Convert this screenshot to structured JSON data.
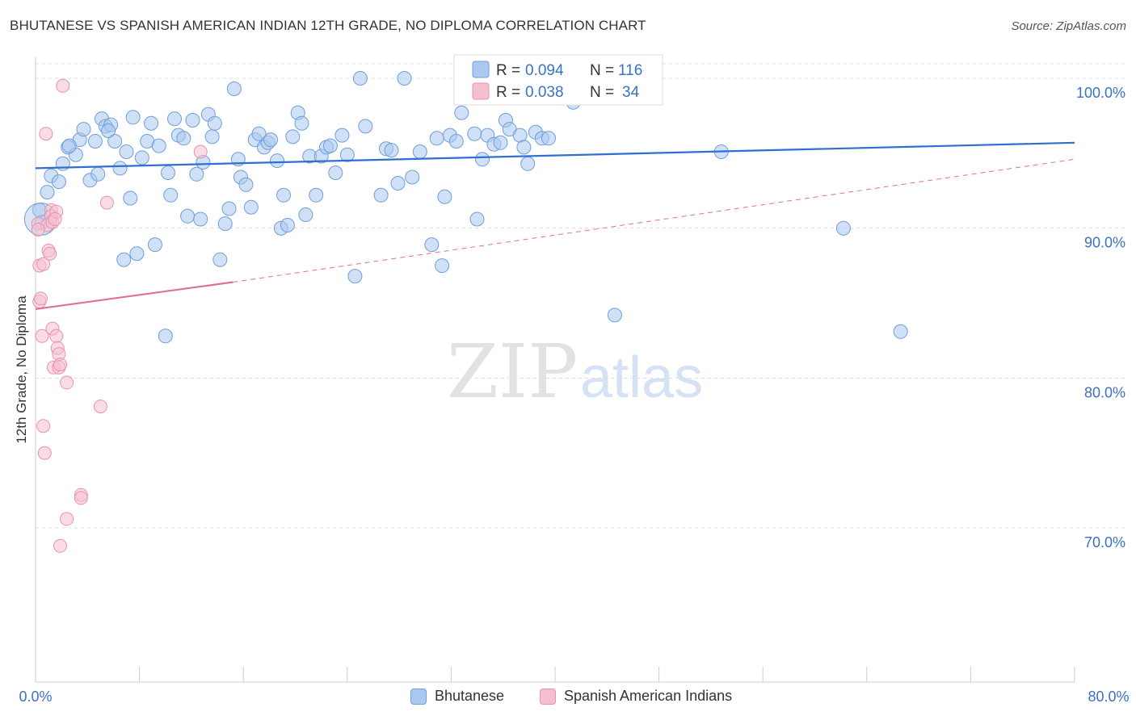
{
  "header": {
    "title": "BHUTANESE VS SPANISH AMERICAN INDIAN 12TH GRADE, NO DIPLOMA CORRELATION CHART",
    "source": "Source: ZipAtlas.com"
  },
  "watermark": {
    "zip": "ZIP",
    "atlas": "atlas"
  },
  "legend_top": {
    "rows": [
      {
        "r_label": "R = ",
        "r_value": "0.094",
        "n_label": "N = ",
        "n_value": "116"
      },
      {
        "r_label": "R = ",
        "r_value": "0.038",
        "n_label": "N = ",
        "n_value": "34"
      }
    ]
  },
  "legend_bottom": {
    "items": [
      "Bhutanese",
      "Spanish American Indians"
    ]
  },
  "colors": {
    "blue_fill": "#aac8f0",
    "blue_stroke": "#6f9fd8",
    "blue_line": "#2f6fd0",
    "pink_fill": "#f6bfd0",
    "pink_stroke": "#e991ae",
    "pink_line": "#e07095",
    "value_text": "#3a72c4",
    "grid": "#dddddd"
  },
  "chart_data": {
    "type": "scatter",
    "title": "BHUTANESE VS SPANISH AMERICAN INDIAN 12TH GRADE, NO DIPLOMA CORRELATION CHART",
    "xlabel": "",
    "ylabel": "12th Grade, No Diploma",
    "xlim": [
      0,
      80
    ],
    "ylim": [
      60,
      101
    ],
    "x_tick_labels": [
      "0.0%",
      "80.0%"
    ],
    "y_ticks": [
      70,
      80,
      90,
      100
    ],
    "y_tick_labels": [
      "70.0%",
      "80.0%",
      "90.0%",
      "100.0%"
    ],
    "grid": true,
    "series": [
      {
        "name": "Bhutanese",
        "r": 0.094,
        "n": 116,
        "trend": {
          "x": [
            0,
            80
          ],
          "y": [
            94.0,
            95.7
          ]
        },
        "points": [
          [
            0.3,
            91.2
          ],
          [
            0.5,
            90.4
          ],
          [
            0.9,
            92.4
          ],
          [
            1.2,
            93.5
          ],
          [
            1.8,
            93.1
          ],
          [
            2.1,
            94.3
          ],
          [
            2.5,
            95.4
          ],
          [
            3.1,
            94.9
          ],
          [
            3.4,
            95.9
          ],
          [
            3.7,
            96.6
          ],
          [
            4.2,
            93.2
          ],
          [
            4.6,
            95.8
          ],
          [
            4.8,
            93.6
          ],
          [
            5.1,
            97.3
          ],
          [
            5.4,
            96.8
          ],
          [
            5.8,
            96.9
          ],
          [
            6.1,
            95.8
          ],
          [
            6.5,
            94.0
          ],
          [
            6.8,
            87.9
          ],
          [
            7.0,
            95.1
          ],
          [
            7.3,
            92.0
          ],
          [
            7.5,
            97.4
          ],
          [
            7.8,
            88.3
          ],
          [
            8.2,
            94.7
          ],
          [
            8.6,
            95.8
          ],
          [
            8.9,
            97.0
          ],
          [
            9.2,
            88.9
          ],
          [
            9.5,
            95.5
          ],
          [
            10.0,
            82.8
          ],
          [
            10.2,
            93.7
          ],
          [
            10.4,
            92.2
          ],
          [
            10.7,
            97.3
          ],
          [
            11.0,
            96.2
          ],
          [
            11.4,
            96.0
          ],
          [
            11.7,
            90.8
          ],
          [
            12.1,
            97.2
          ],
          [
            12.4,
            93.6
          ],
          [
            12.7,
            90.6
          ],
          [
            12.9,
            94.4
          ],
          [
            13.3,
            97.6
          ],
          [
            13.6,
            96.1
          ],
          [
            13.8,
            97.0
          ],
          [
            14.2,
            87.9
          ],
          [
            14.6,
            90.3
          ],
          [
            14.9,
            91.3
          ],
          [
            15.3,
            99.3
          ],
          [
            15.6,
            94.6
          ],
          [
            15.8,
            93.4
          ],
          [
            16.2,
            92.9
          ],
          [
            16.6,
            91.4
          ],
          [
            16.9,
            95.9
          ],
          [
            17.2,
            96.3
          ],
          [
            17.6,
            95.4
          ],
          [
            17.9,
            95.7
          ],
          [
            18.1,
            95.9
          ],
          [
            18.6,
            94.5
          ],
          [
            18.9,
            90.0
          ],
          [
            19.1,
            92.2
          ],
          [
            19.4,
            90.2
          ],
          [
            19.8,
            96.1
          ],
          [
            20.2,
            97.7
          ],
          [
            20.5,
            97.0
          ],
          [
            20.8,
            90.9
          ],
          [
            21.1,
            94.8
          ],
          [
            21.6,
            92.2
          ],
          [
            22.0,
            94.8
          ],
          [
            22.4,
            95.4
          ],
          [
            22.7,
            95.5
          ],
          [
            23.1,
            93.7
          ],
          [
            23.6,
            96.2
          ],
          [
            24.0,
            94.9
          ],
          [
            24.6,
            86.8
          ],
          [
            25.0,
            100.0
          ],
          [
            25.4,
            96.8
          ],
          [
            26.6,
            92.2
          ],
          [
            27.0,
            95.3
          ],
          [
            27.4,
            95.2
          ],
          [
            27.9,
            93.0
          ],
          [
            28.4,
            100.0
          ],
          [
            29.0,
            93.4
          ],
          [
            29.6,
            95.1
          ],
          [
            30.5,
            88.9
          ],
          [
            30.9,
            96.0
          ],
          [
            31.3,
            87.5
          ],
          [
            31.5,
            92.1
          ],
          [
            31.9,
            96.2
          ],
          [
            32.4,
            95.8
          ],
          [
            32.8,
            97.7
          ],
          [
            33.8,
            96.3
          ],
          [
            34.0,
            90.6
          ],
          [
            34.4,
            94.6
          ],
          [
            34.8,
            96.2
          ],
          [
            35.3,
            95.6
          ],
          [
            35.8,
            95.7
          ],
          [
            36.2,
            97.2
          ],
          [
            36.5,
            96.6
          ],
          [
            37.3,
            96.2
          ],
          [
            37.6,
            95.4
          ],
          [
            37.9,
            94.3
          ],
          [
            38.5,
            96.4
          ],
          [
            39.0,
            96.0
          ],
          [
            39.5,
            96.0
          ],
          [
            40.0,
            100.0
          ],
          [
            41.4,
            98.4
          ],
          [
            42.5,
            99.5
          ],
          [
            43.0,
            100.0
          ],
          [
            44.8,
            99.1
          ],
          [
            46.0,
            99.3
          ],
          [
            44.6,
            84.2
          ],
          [
            52.8,
            95.1
          ],
          [
            62.2,
            90.0
          ],
          [
            66.6,
            83.1
          ],
          [
            2.6,
            95.5
          ],
          [
            5.6,
            96.5
          ]
        ]
      },
      {
        "name": "Spanish American Indians",
        "r": 0.038,
        "n": 34,
        "trend": {
          "x": [
            0,
            15.2
          ],
          "y": [
            84.6,
            86.4
          ],
          "dashed_x": [
            15.2,
            80
          ],
          "dashed_y": [
            86.4,
            94.6
          ]
        },
        "points": [
          [
            0.2,
            90.3
          ],
          [
            0.3,
            87.5
          ],
          [
            0.3,
            85.1
          ],
          [
            0.4,
            85.3
          ],
          [
            0.5,
            82.8
          ],
          [
            0.6,
            87.6
          ],
          [
            0.6,
            76.8
          ],
          [
            0.7,
            75.0
          ],
          [
            0.8,
            96.3
          ],
          [
            0.9,
            90.2
          ],
          [
            1.0,
            88.5
          ],
          [
            1.1,
            88.3
          ],
          [
            1.2,
            91.2
          ],
          [
            1.2,
            90.8
          ],
          [
            1.3,
            90.4
          ],
          [
            1.3,
            83.3
          ],
          [
            1.4,
            80.7
          ],
          [
            1.6,
            91.1
          ],
          [
            1.6,
            82.8
          ],
          [
            1.7,
            82.0
          ],
          [
            1.8,
            81.6
          ],
          [
            1.8,
            80.7
          ],
          [
            1.9,
            80.9
          ],
          [
            1.9,
            68.8
          ],
          [
            2.1,
            99.5
          ],
          [
            2.4,
            79.7
          ],
          [
            2.4,
            70.6
          ],
          [
            3.5,
            72.2
          ],
          [
            3.5,
            72.0
          ],
          [
            5.0,
            78.1
          ],
          [
            5.5,
            91.7
          ],
          [
            12.7,
            95.1
          ],
          [
            0.2,
            89.9
          ],
          [
            1.5,
            90.6
          ]
        ]
      }
    ]
  }
}
